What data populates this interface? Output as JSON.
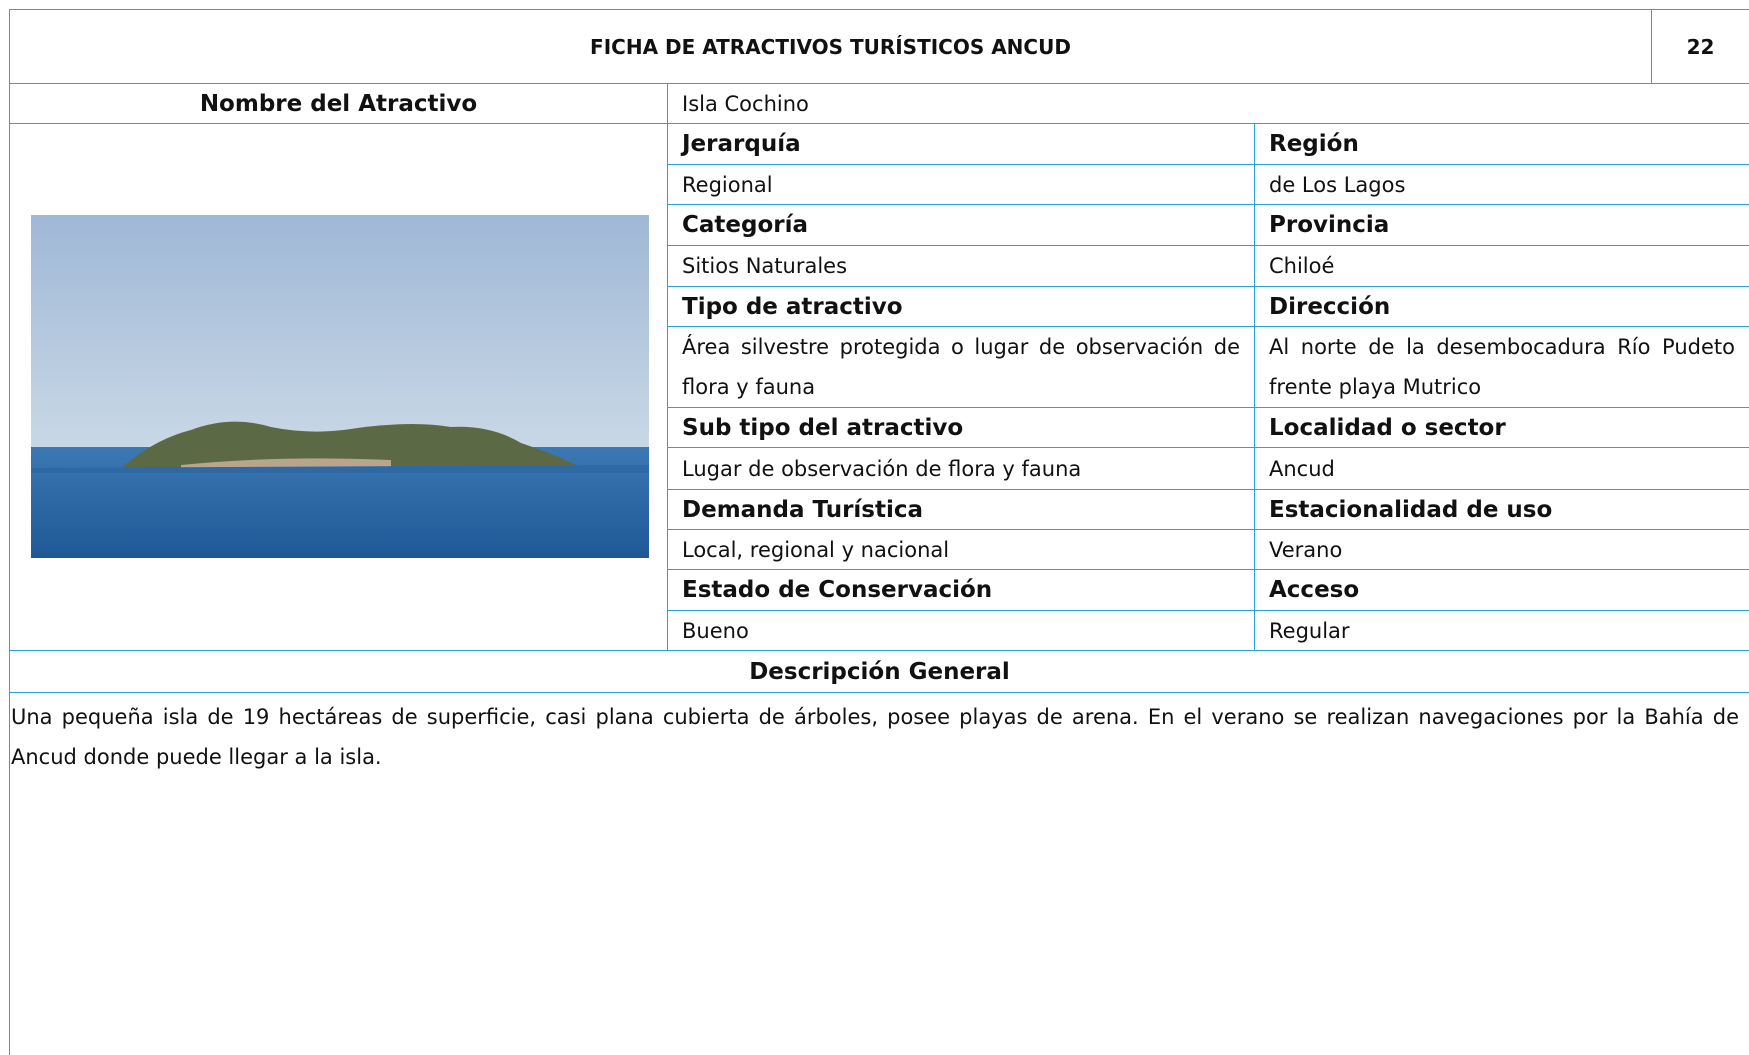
{
  "header": {
    "title": "FICHA DE ATRACTIVOS TURÍSTICOS ANCUD",
    "page_number": "22"
  },
  "attraction": {
    "label": "Nombre del Atractivo",
    "value": "Isla Cochino"
  },
  "fields": [
    {
      "left": {
        "label": "Jerarquía",
        "value": "Regional"
      },
      "right": {
        "label": "Región",
        "value": "de Los Lagos"
      }
    },
    {
      "left": {
        "label": "Categoría",
        "value": "Sitios Naturales"
      },
      "right": {
        "label": "Provincia",
        "value": "Chiloé"
      }
    },
    {
      "left": {
        "label": "Tipo de atractivo",
        "value": "Área silvestre protegida o lugar de observación de flora y fauna"
      },
      "right": {
        "label": "Dirección",
        "value": "Al norte de la desembocadura Río Pudeto frente playa Mutrico"
      }
    },
    {
      "left": {
        "label": "Sub tipo del atractivo",
        "value": "Lugar de observación de flora y fauna"
      },
      "right": {
        "label": "Localidad o sector",
        "value": "Ancud"
      }
    },
    {
      "left": {
        "label": "Demanda Turística",
        "value": "Local, regional y nacional"
      },
      "right": {
        "label": "Estacionalidad de uso",
        "value": "Verano"
      }
    },
    {
      "left": {
        "label": "Estado de Conservación",
        "value": "Bueno"
      },
      "right": {
        "label": "Acceso",
        "value": "Regular"
      }
    }
  ],
  "description": {
    "label": "Descripción General",
    "text": "Una pequeña isla de 19 hectáreas de superficie, casi plana cubierta de árboles, posee playas de arena. En el verano se realizan navegaciones por la Bahía de Ancud donde puede llegar a la isla."
  }
}
